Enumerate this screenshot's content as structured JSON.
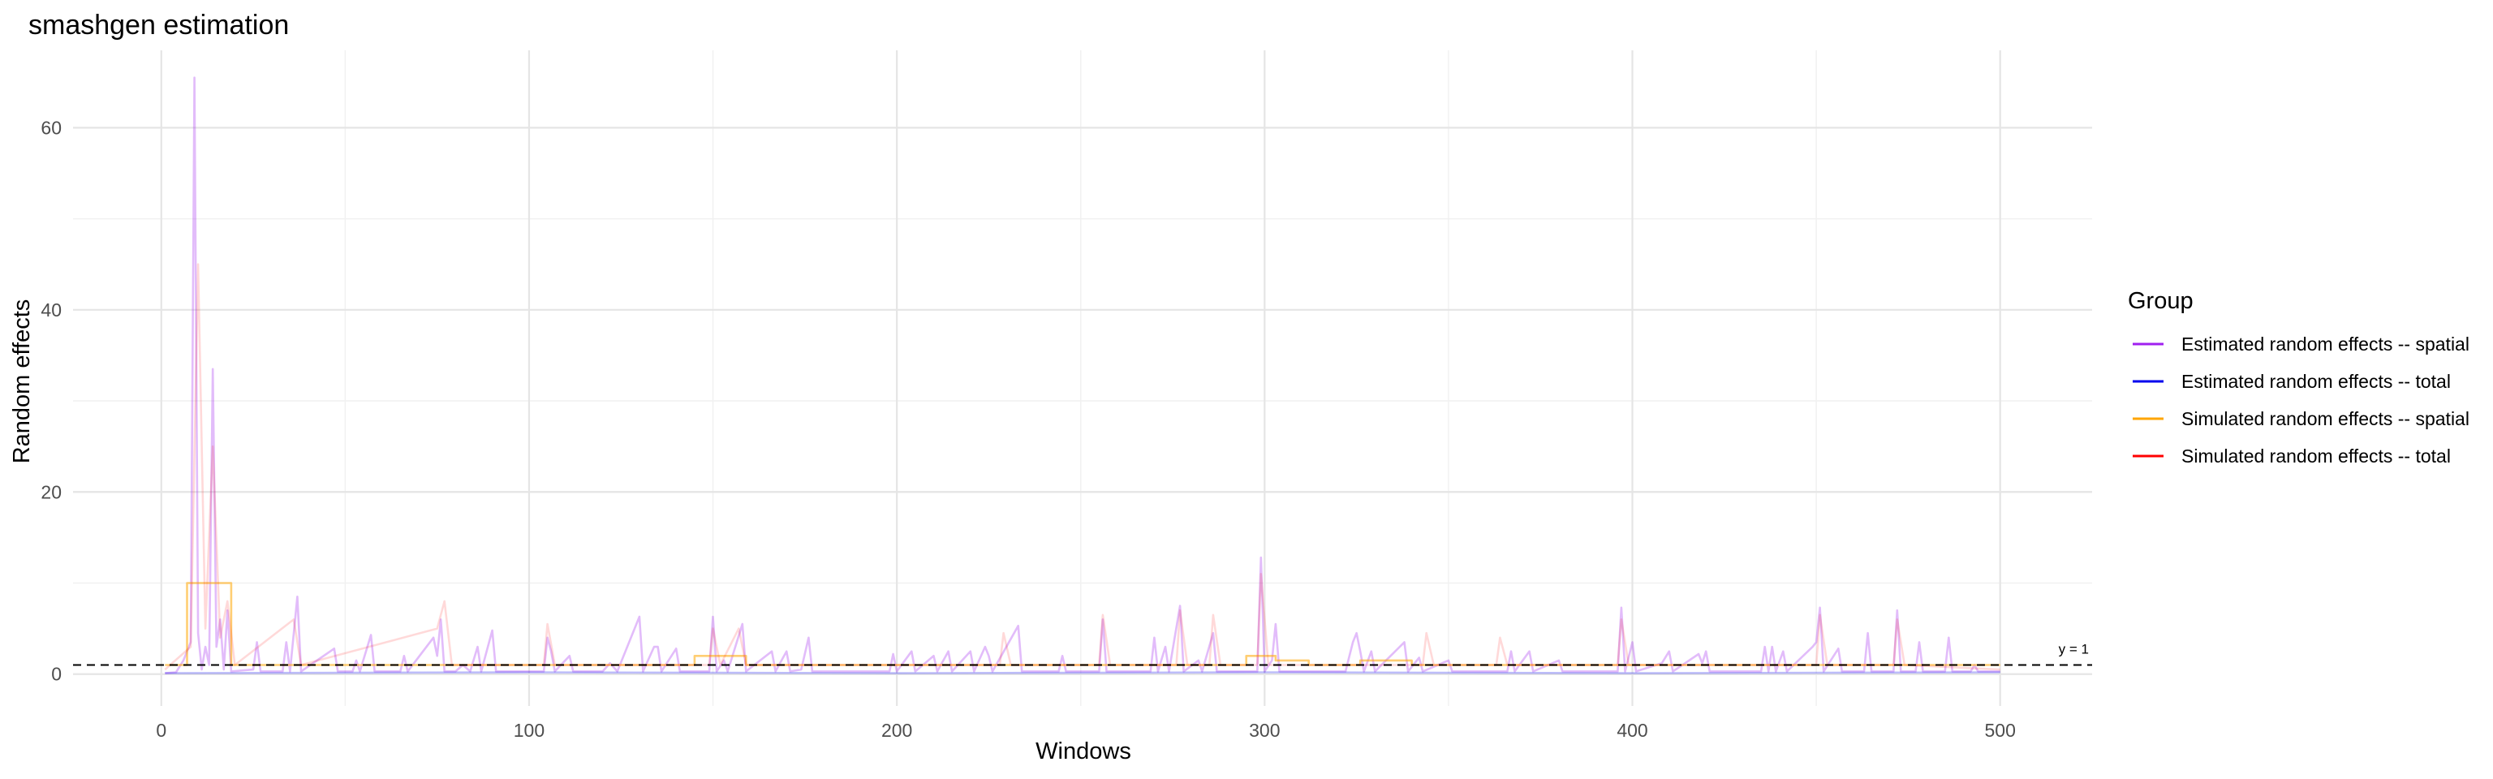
{
  "chart_data": {
    "type": "line",
    "title": "smashgen estimation",
    "xlabel": "Windows",
    "ylabel": "Random effects",
    "xlim": [
      -24,
      525
    ],
    "ylim": [
      -3.5,
      68.5
    ],
    "x_ticks": [
      0,
      100,
      200,
      300,
      400,
      500
    ],
    "y_ticks": [
      0,
      20,
      40,
      60
    ],
    "grid": true,
    "legend_placement": "right",
    "legend": {
      "title": "Group",
      "entries": [
        {
          "label": "Estimated random effects -- spatial",
          "color": "#A020F0"
        },
        {
          "label": "Estimated random effects -- total",
          "color": "#0000EE"
        },
        {
          "label": "Simulated random effects -- spatial",
          "color": "#FFA500"
        },
        {
          "label": "Simulated random effects -- total",
          "color": "#FF0000"
        }
      ]
    },
    "hline": {
      "y": 1,
      "label": "y = 1",
      "style": "dashed"
    },
    "series": [
      {
        "name": "Estimated random effects -- spatial",
        "color": "#A020F0",
        "opacity": 0.3,
        "points": [
          [
            1,
            0.1
          ],
          [
            4,
            0.2
          ],
          [
            6,
            1.5
          ],
          [
            8,
            3.5
          ],
          [
            9,
            65.5
          ],
          [
            10,
            4.5
          ],
          [
            11,
            0.5
          ],
          [
            12,
            3.0
          ],
          [
            13,
            1.0
          ],
          [
            14,
            33.5
          ],
          [
            15,
            3.0
          ],
          [
            16,
            6.0
          ],
          [
            17,
            0.5
          ],
          [
            18,
            7.0
          ],
          [
            19,
            0.3
          ],
          [
            25,
            0.5
          ],
          [
            26,
            3.5
          ],
          [
            27,
            0.3
          ],
          [
            33,
            0.3
          ],
          [
            34,
            3.5
          ],
          [
            35,
            0.3
          ],
          [
            37,
            8.5
          ],
          [
            38,
            0.3
          ],
          [
            47,
            2.8
          ],
          [
            48,
            0.3
          ],
          [
            52,
            0.3
          ],
          [
            53,
            1.5
          ],
          [
            54,
            0.3
          ],
          [
            57,
            4.3
          ],
          [
            58,
            0.3
          ],
          [
            65,
            0.3
          ],
          [
            66,
            2.0
          ],
          [
            67,
            0.3
          ],
          [
            74,
            4.0
          ],
          [
            75,
            2.0
          ],
          [
            76,
            6.0
          ],
          [
            77,
            0.3
          ],
          [
            80,
            0.3
          ],
          [
            82,
            1.0
          ],
          [
            84,
            0.3
          ],
          [
            86,
            3.0
          ],
          [
            87,
            0.3
          ],
          [
            90,
            4.8
          ],
          [
            91,
            0.3
          ],
          [
            104,
            0.3
          ],
          [
            105,
            4.0
          ],
          [
            106,
            2.5
          ],
          [
            107,
            0.3
          ],
          [
            111,
            2.0
          ],
          [
            112,
            0.3
          ],
          [
            120,
            0.3
          ],
          [
            122,
            1.2
          ],
          [
            124,
            0.3
          ],
          [
            130,
            6.3
          ],
          [
            131,
            0.3
          ],
          [
            134,
            3.0
          ],
          [
            135,
            3.0
          ],
          [
            136,
            0.3
          ],
          [
            140,
            2.8
          ],
          [
            141,
            0.3
          ],
          [
            149,
            0.3
          ],
          [
            150,
            6.3
          ],
          [
            151,
            0.3
          ],
          [
            153,
            1.5
          ],
          [
            154,
            0.3
          ],
          [
            158,
            5.5
          ],
          [
            159,
            0.3
          ],
          [
            166,
            2.5
          ],
          [
            167,
            0.3
          ],
          [
            170,
            2.5
          ],
          [
            171,
            0.3
          ],
          [
            174,
            0.5
          ],
          [
            176,
            4.0
          ],
          [
            177,
            0.3
          ],
          [
            198,
            0.3
          ],
          [
            199,
            2.2
          ],
          [
            200,
            0.3
          ],
          [
            204,
            2.5
          ],
          [
            205,
            0.3
          ],
          [
            210,
            2.0
          ],
          [
            211,
            0.3
          ],
          [
            214,
            2.5
          ],
          [
            215,
            0.3
          ],
          [
            220,
            2.5
          ],
          [
            221,
            0.3
          ],
          [
            224,
            3.0
          ],
          [
            225,
            2.0
          ],
          [
            226,
            0.3
          ],
          [
            233,
            5.3
          ],
          [
            234,
            0.3
          ],
          [
            244,
            0.3
          ],
          [
            245,
            2.0
          ],
          [
            246,
            0.3
          ],
          [
            255,
            0.3
          ],
          [
            256,
            6.0
          ],
          [
            257,
            0.3
          ],
          [
            269,
            0.3
          ],
          [
            270,
            4.0
          ],
          [
            271,
            0.3
          ],
          [
            273,
            3.0
          ],
          [
            274,
            0.3
          ],
          [
            277,
            7.5
          ],
          [
            278,
            0.3
          ],
          [
            282,
            1.5
          ],
          [
            283,
            0.3
          ],
          [
            286,
            4.5
          ],
          [
            287,
            0.3
          ],
          [
            298,
            0.3
          ],
          [
            299,
            12.8
          ],
          [
            300,
            0.3
          ],
          [
            302,
            1.5
          ],
          [
            303,
            5.5
          ],
          [
            304,
            0.3
          ],
          [
            322,
            0.3
          ],
          [
            324,
            3.5
          ],
          [
            325,
            4.5
          ],
          [
            326,
            2.5
          ],
          [
            327,
            0.3
          ],
          [
            329,
            2.5
          ],
          [
            330,
            0.3
          ],
          [
            338,
            3.5
          ],
          [
            339,
            0.3
          ],
          [
            342,
            1.8
          ],
          [
            343,
            0.3
          ],
          [
            350,
            1.5
          ],
          [
            351,
            0.3
          ],
          [
            366,
            0.3
          ],
          [
            367,
            2.5
          ],
          [
            368,
            0.3
          ],
          [
            372,
            2.5
          ],
          [
            373,
            0.3
          ],
          [
            380,
            1.5
          ],
          [
            381,
            0.3
          ],
          [
            396,
            0.3
          ],
          [
            397,
            7.3
          ],
          [
            398,
            0.3
          ],
          [
            400,
            3.5
          ],
          [
            401,
            0.3
          ],
          [
            408,
            1.2
          ],
          [
            410,
            2.5
          ],
          [
            411,
            0.3
          ],
          [
            418,
            2.2
          ],
          [
            419,
            1.2
          ],
          [
            420,
            2.5
          ],
          [
            421,
            0.3
          ],
          [
            435,
            0.3
          ],
          [
            436,
            3.0
          ],
          [
            437,
            0.3
          ],
          [
            438,
            3.0
          ],
          [
            439,
            0.3
          ],
          [
            441,
            2.5
          ],
          [
            442,
            0.3
          ],
          [
            449,
            3.0
          ],
          [
            450,
            3.5
          ],
          [
            451,
            7.3
          ],
          [
            452,
            0.3
          ],
          [
            456,
            2.8
          ],
          [
            457,
            0.3
          ],
          [
            463,
            0.3
          ],
          [
            464,
            4.5
          ],
          [
            465,
            0.3
          ],
          [
            471,
            0.3
          ],
          [
            472,
            7.0
          ],
          [
            473,
            0.3
          ],
          [
            477,
            0.3
          ],
          [
            478,
            3.5
          ],
          [
            479,
            0.3
          ],
          [
            485,
            0.3
          ],
          [
            486,
            4.0
          ],
          [
            487,
            0.3
          ],
          [
            492,
            0.3
          ],
          [
            493,
            1.0
          ],
          [
            494,
            0.3
          ],
          [
            500,
            0.3
          ]
        ]
      },
      {
        "name": "Estimated random effects -- total",
        "color": "#0000EE",
        "opacity": 0.25,
        "points": [
          [
            1,
            0.1
          ],
          [
            100,
            0.2
          ],
          [
            200,
            0.1
          ],
          [
            300,
            0.2
          ],
          [
            400,
            0.1
          ],
          [
            500,
            0.2
          ]
        ]
      },
      {
        "name": "Simulated random effects -- spatial",
        "color": "#FFA500",
        "opacity": 0.55,
        "points": [
          [
            1,
            1.0
          ],
          [
            7,
            1.0
          ],
          [
            7,
            10.0
          ],
          [
            19,
            10.0
          ],
          [
            19,
            1.0
          ],
          [
            145,
            1.0
          ],
          [
            145,
            2.0
          ],
          [
            159,
            2.0
          ],
          [
            159,
            1.0
          ],
          [
            295,
            1.0
          ],
          [
            295,
            2.0
          ],
          [
            303,
            2.0
          ],
          [
            303,
            1.5
          ],
          [
            312,
            1.5
          ],
          [
            312,
            1.0
          ],
          [
            326,
            1.0
          ],
          [
            326,
            1.5
          ],
          [
            340,
            1.5
          ],
          [
            340,
            1.0
          ],
          [
            500,
            1.0
          ]
        ]
      },
      {
        "name": "Simulated random effects -- total",
        "color": "#FF0000",
        "opacity": 0.15,
        "points": [
          [
            1,
            0.5
          ],
          [
            8,
            3.0
          ],
          [
            10,
            45.0
          ],
          [
            12,
            5.0
          ],
          [
            14,
            25.0
          ],
          [
            16,
            4.0
          ],
          [
            18,
            8.0
          ],
          [
            20,
            1.0
          ],
          [
            36,
            6.0
          ],
          [
            38,
            1.0
          ],
          [
            75,
            5.0
          ],
          [
            77,
            8.0
          ],
          [
            79,
            1.0
          ],
          [
            104,
            1.0
          ],
          [
            105,
            5.5
          ],
          [
            107,
            1.0
          ],
          [
            149,
            1.0
          ],
          [
            150,
            5.0
          ],
          [
            152,
            1.0
          ],
          [
            157,
            5.0
          ],
          [
            159,
            1.0
          ],
          [
            228,
            1.0
          ],
          [
            229,
            4.5
          ],
          [
            231,
            1.0
          ],
          [
            255,
            1.0
          ],
          [
            256,
            6.5
          ],
          [
            258,
            1.0
          ],
          [
            276,
            1.0
          ],
          [
            277,
            7.0
          ],
          [
            279,
            1.0
          ],
          [
            285,
            1.0
          ],
          [
            286,
            6.5
          ],
          [
            288,
            1.0
          ],
          [
            298,
            1.0
          ],
          [
            299,
            11.0
          ],
          [
            301,
            1.0
          ],
          [
            343,
            1.0
          ],
          [
            344,
            4.5
          ],
          [
            346,
            1.0
          ],
          [
            363,
            1.0
          ],
          [
            364,
            4.0
          ],
          [
            366,
            1.0
          ],
          [
            396,
            1.0
          ],
          [
            397,
            6.0
          ],
          [
            399,
            1.0
          ],
          [
            450,
            1.0
          ],
          [
            451,
            6.5
          ],
          [
            453,
            1.0
          ],
          [
            471,
            1.0
          ],
          [
            472,
            6.0
          ],
          [
            474,
            1.0
          ],
          [
            500,
            0.5
          ]
        ]
      }
    ]
  }
}
